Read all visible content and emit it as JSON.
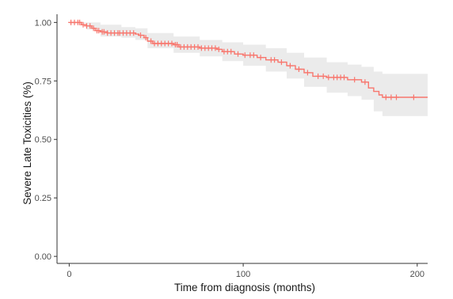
{
  "chart_data": {
    "type": "line",
    "title": "",
    "xlabel": "Time from diagnosis (months)",
    "ylabel": "Severe Late Toxicities (%)",
    "xlim": [
      -7,
      206
    ],
    "ylim": [
      -0.03,
      1.035
    ],
    "xticks": [
      0,
      100,
      200
    ],
    "xtick_labels": [
      "0",
      "100",
      "200"
    ],
    "yticks": [
      0.0,
      0.25,
      0.5,
      0.75,
      1.0
    ],
    "ytick_labels": [
      "0.00",
      "0.25",
      "0.50",
      "0.75",
      "1.00"
    ],
    "grid": false,
    "legend": "none",
    "series": [
      {
        "line_color": "#F8766D",
        "band_color": "#EBEBEB",
        "estimate": [
          [
            0,
            1.0
          ],
          [
            5,
            1.0
          ],
          [
            7,
            0.99
          ],
          [
            10,
            0.985
          ],
          [
            13,
            0.975
          ],
          [
            15,
            0.965
          ],
          [
            18,
            0.96
          ],
          [
            22,
            0.955
          ],
          [
            30,
            0.955
          ],
          [
            38,
            0.95
          ],
          [
            40,
            0.945
          ],
          [
            43,
            0.935
          ],
          [
            45,
            0.92
          ],
          [
            48,
            0.91
          ],
          [
            60,
            0.905
          ],
          [
            63,
            0.895
          ],
          [
            75,
            0.89
          ],
          [
            85,
            0.885
          ],
          [
            88,
            0.875
          ],
          [
            95,
            0.865
          ],
          [
            100,
            0.86
          ],
          [
            108,
            0.85
          ],
          [
            113,
            0.84
          ],
          [
            120,
            0.83
          ],
          [
            125,
            0.815
          ],
          [
            130,
            0.8
          ],
          [
            135,
            0.785
          ],
          [
            140,
            0.77
          ],
          [
            148,
            0.765
          ],
          [
            160,
            0.755
          ],
          [
            168,
            0.745
          ],
          [
            172,
            0.72
          ],
          [
            175,
            0.705
          ],
          [
            178,
            0.69
          ],
          [
            180,
            0.68
          ],
          [
            206,
            0.68
          ]
        ],
        "lower": [
          [
            0,
            0.995
          ],
          [
            10,
            0.97
          ],
          [
            18,
            0.94
          ],
          [
            30,
            0.935
          ],
          [
            38,
            0.925
          ],
          [
            45,
            0.89
          ],
          [
            60,
            0.87
          ],
          [
            75,
            0.855
          ],
          [
            88,
            0.835
          ],
          [
            100,
            0.815
          ],
          [
            113,
            0.79
          ],
          [
            125,
            0.76
          ],
          [
            135,
            0.725
          ],
          [
            148,
            0.7
          ],
          [
            160,
            0.685
          ],
          [
            168,
            0.67
          ],
          [
            175,
            0.62
          ],
          [
            180,
            0.6
          ],
          [
            206,
            0.595
          ]
        ],
        "upper": [
          [
            0,
            1.0
          ],
          [
            10,
            1.0
          ],
          [
            18,
            0.99
          ],
          [
            30,
            0.98
          ],
          [
            38,
            0.975
          ],
          [
            45,
            0.955
          ],
          [
            60,
            0.94
          ],
          [
            75,
            0.925
          ],
          [
            88,
            0.915
          ],
          [
            100,
            0.905
          ],
          [
            113,
            0.89
          ],
          [
            125,
            0.87
          ],
          [
            135,
            0.85
          ],
          [
            148,
            0.83
          ],
          [
            160,
            0.82
          ],
          [
            168,
            0.81
          ],
          [
            175,
            0.79
          ],
          [
            180,
            0.78
          ],
          [
            206,
            0.78
          ]
        ],
        "censored_times": [
          1,
          3,
          5,
          6,
          8,
          10,
          12,
          14,
          16,
          17,
          19,
          20,
          22,
          24,
          26,
          28,
          29,
          31,
          33,
          35,
          37,
          41,
          44,
          47,
          49,
          51,
          53,
          55,
          57,
          59,
          61,
          62,
          64,
          66,
          68,
          70,
          72,
          74,
          76,
          78,
          80,
          82,
          84,
          86,
          89,
          91,
          93,
          97,
          101,
          104,
          106,
          110,
          116,
          118,
          122,
          127,
          132,
          137,
          143,
          146,
          149,
          152,
          154,
          156,
          158,
          164,
          170,
          182,
          185,
          188,
          198
        ]
      }
    ]
  }
}
